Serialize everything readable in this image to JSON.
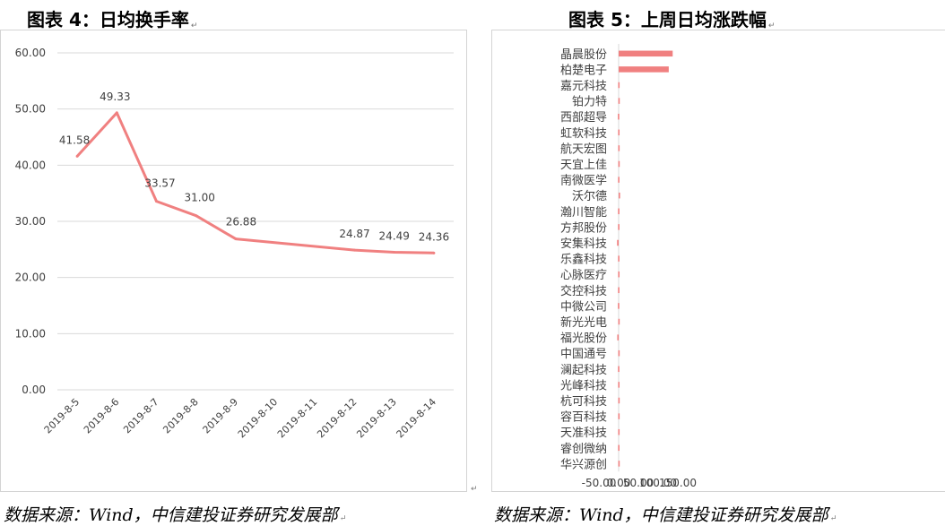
{
  "left": {
    "title": "图表 4：日均换手率",
    "source": "数据来源：Wind，中信建投证券研究发展部",
    "chart_data": {
      "type": "line",
      "title": "",
      "x": [
        "2019-8-5",
        "2019-8-6",
        "2019-8-7",
        "2019-8-8",
        "2019-8-9",
        "2019-8-10",
        "2019-8-11",
        "2019-8-12",
        "2019-8-13",
        "2019-8-14"
      ],
      "series": [
        {
          "name": "",
          "values": [
            41.58,
            49.33,
            33.57,
            31.0,
            26.88,
            null,
            null,
            24.87,
            24.49,
            24.36
          ]
        }
      ],
      "data_labels": [
        "41.58",
        "49.33",
        "33.57",
        "31.00",
        "26.88",
        "",
        "",
        "24.87",
        "24.49",
        "24.36"
      ],
      "ylim": [
        0,
        60
      ],
      "yticks": [
        "0.00",
        "10.00",
        "20.00",
        "30.00",
        "40.00",
        "50.00",
        "60.00"
      ],
      "grid": true,
      "line_color": "#f08080"
    }
  },
  "right": {
    "title": "图表 5：上周日均涨跌幅",
    "source": "数据来源：Wind，中信建投证券研究发展部",
    "chart_data": {
      "type": "bar",
      "orientation": "horizontal",
      "title": "",
      "categories": [
        "晶晨股份",
        "柏楚电子",
        "嘉元科技",
        "铂力特",
        "西部超导",
        "虹软科技",
        "航天宏图",
        "天宜上佳",
        "南微医学",
        "沃尔德",
        "瀚川智能",
        "方邦股份",
        "安集科技",
        "乐鑫科技",
        "心脉医疗",
        "交控科技",
        "中微公司",
        "新光光电",
        "福光股份",
        "中国通号",
        "澜起科技",
        "光峰科技",
        "杭可科技",
        "容百科技",
        "天准科技",
        "睿创微纳",
        "华兴源创"
      ],
      "values": [
        137,
        127,
        -1.2,
        -0.8,
        -2.0,
        -1.3,
        -1.1,
        -0.9,
        -1.5,
        0.2,
        -1.6,
        -1.5,
        -4.0,
        -1.5,
        -1.3,
        -1.6,
        -1.9,
        -1.0,
        -3.5,
        -1.0,
        -1.7,
        -1.3,
        -1.0,
        -1.1,
        -1.2,
        -1.4,
        -0.9
      ],
      "xlim": [
        -50,
        150
      ],
      "xticks": [
        "-50.00",
        "0.00",
        "50.00",
        "100.00",
        "150.00"
      ],
      "tick_values": [
        -50,
        0,
        50,
        100,
        150
      ],
      "grid": false,
      "bar_color": "#f08080"
    }
  }
}
